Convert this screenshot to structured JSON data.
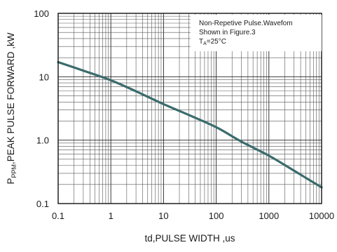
{
  "chart_data": {
    "type": "line",
    "title": "",
    "xlabel": "td,PULSE WIDTH ,us",
    "ylabel": {
      "prefix": "P",
      "subscript": "PPM",
      "rest": ",PEAK PULSE  FORWARD ,kW"
    },
    "x_scale": "log",
    "y_scale": "log",
    "xlim": [
      0.1,
      10000
    ],
    "ylim": [
      0.1,
      100
    ],
    "x_ticks": [
      "0.1",
      "1",
      "10",
      "100",
      "1000",
      "10000"
    ],
    "y_ticks": [
      "0.1",
      "1.0",
      "10",
      "100"
    ],
    "grid": true,
    "annotation": {
      "line1": "Non-Repetive  Pulse.Wavefom",
      "line2": "Shown in Figure.3",
      "line3_prefix": "T",
      "line3_subscript": "A",
      "line3_rest": "=25°C"
    },
    "series": [
      {
        "color": "#3a6b6b",
        "x": [
          0.1,
          0.3,
          1,
          3,
          10,
          30,
          100,
          300,
          1000,
          3000,
          10000
        ],
        "y": [
          17,
          12.5,
          8.8,
          5.9,
          3.7,
          2.5,
          1.6,
          0.95,
          0.57,
          0.33,
          0.18
        ]
      }
    ]
  }
}
